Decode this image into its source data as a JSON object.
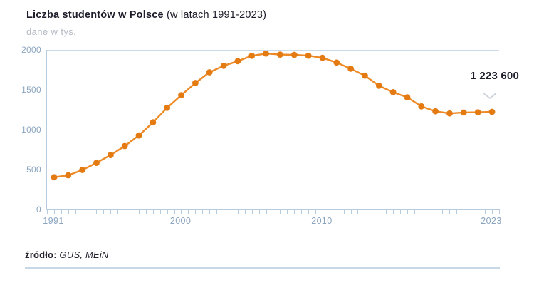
{
  "header": {
    "title": "Liczba studentów w Polsce",
    "title_suffix": " (w latach 1991-2023)",
    "subtitle": "dane w tys."
  },
  "annotation": {
    "value": "1 223 600"
  },
  "source": {
    "prefix": "źródło:",
    "text": " GUS, MEiN"
  },
  "colors": {
    "line": "#ED8A26",
    "marker": "#E47A12",
    "grid": "#CCDAE9",
    "axis": "#B7CBDF",
    "axis_label": "#8BA5C0",
    "title_text": "#1D1D2B",
    "subtitle_text": "#B2B9C3",
    "annotation_text": "#1D1D2B",
    "chevron": "#C7CDD7"
  },
  "chart_data": {
    "type": "line",
    "title": "Liczba studentów w Polsce (w latach 1991-2023)",
    "subtitle": "dane w tys.",
    "xlabel": "",
    "ylabel": "dane w tys.",
    "years": [
      1991,
      1992,
      1993,
      1994,
      1995,
      1996,
      1997,
      1998,
      1999,
      2000,
      2001,
      2002,
      2003,
      2004,
      2005,
      2006,
      2007,
      2008,
      2009,
      2010,
      2012,
      2013,
      2014,
      2015,
      2016,
      2017,
      2018,
      2019,
      2020,
      2021,
      2022,
      2023
    ],
    "values": [
      403.8,
      428.2,
      495.7,
      584.0,
      682.2,
      794.6,
      927.5,
      1091.8,
      1274.0,
      1431.9,
      1584.8,
      1718.7,
      1800.5,
      1858.7,
      1926.1,
      1953.8,
      1941.4,
      1937.4,
      1927.8,
      1900.0,
      1841.3,
      1764.1,
      1676.9,
      1549.9,
      1469.4,
      1405.1,
      1291.9,
      1230.3,
      1204.0,
      1215.3,
      1218.2,
      1223.6
    ],
    "ylim": [
      0,
      2000
    ],
    "y_ticks": [
      0,
      500,
      1000,
      1500,
      2000
    ],
    "x_tick_labels": [
      "1991",
      "2000",
      "2010",
      "2023"
    ],
    "x_tick_indices": [
      0,
      9,
      19,
      31
    ],
    "grid": "horizontal-only",
    "legend": "none",
    "markers": true,
    "annotation": {
      "label": "1 223 600",
      "year": 2023,
      "value_tys": 1223.6
    }
  }
}
